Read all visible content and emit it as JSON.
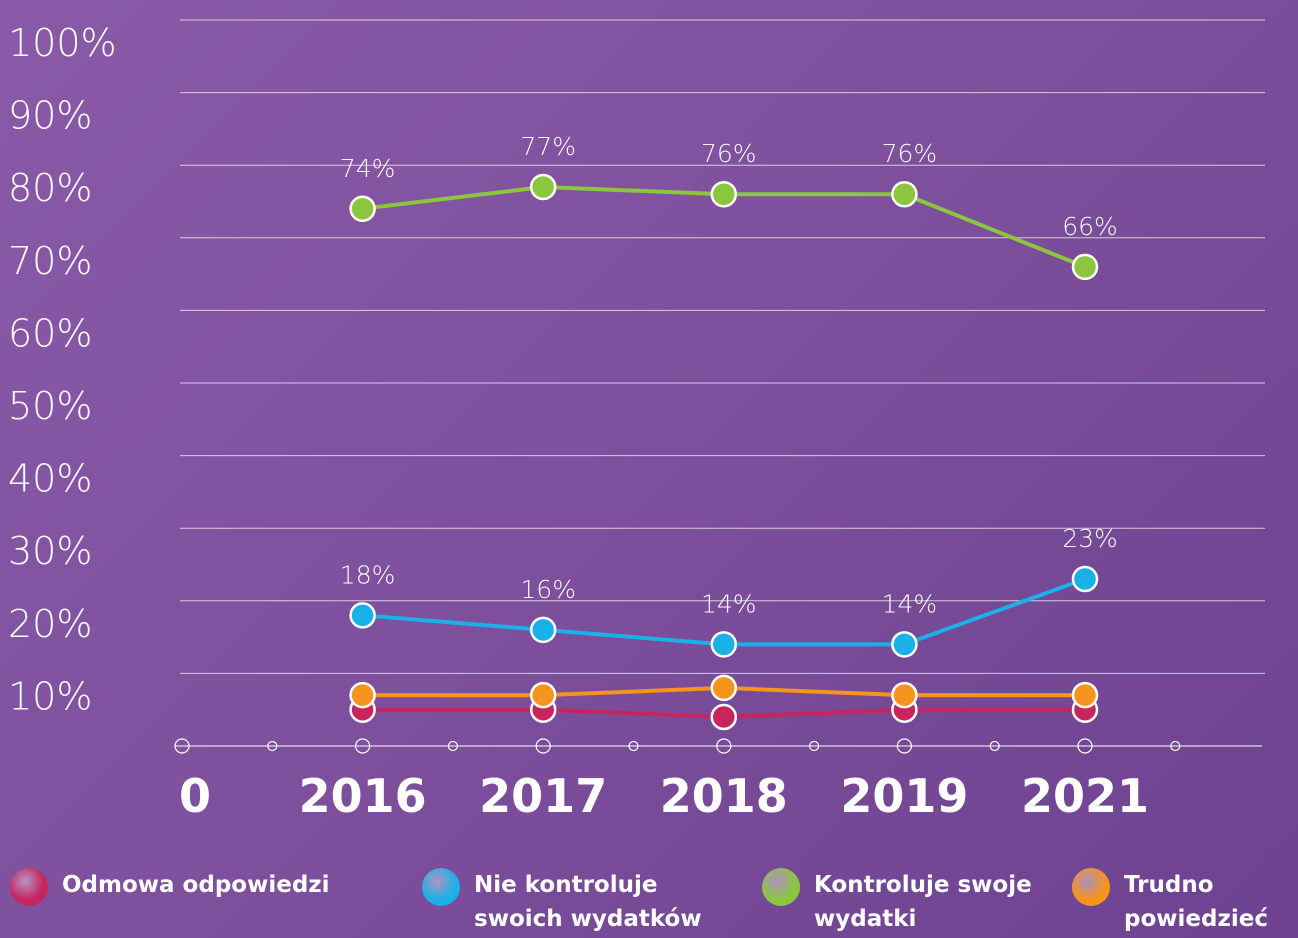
{
  "chart_data": {
    "type": "line",
    "categories": [
      "0",
      "2016",
      "2017",
      "2018",
      "2019",
      "2021"
    ],
    "ylim": [
      0,
      100
    ],
    "yticks": [
      {
        "value": 10,
        "label": "10%"
      },
      {
        "value": 20,
        "label": "20%"
      },
      {
        "value": 30,
        "label": "30%"
      },
      {
        "value": 40,
        "label": "40%"
      },
      {
        "value": 50,
        "label": "50%"
      },
      {
        "value": 60,
        "label": "60%"
      },
      {
        "value": 70,
        "label": "70%"
      },
      {
        "value": 80,
        "label": "80%"
      },
      {
        "value": 90,
        "label": "90%"
      },
      {
        "value": 100,
        "label": "100%"
      }
    ],
    "grid": true,
    "series": [
      {
        "name": "Odmowa odpowiedzi",
        "color": "#c8245e",
        "values": [
          null,
          5,
          5,
          4,
          5,
          5
        ]
      },
      {
        "name": "Nie kontroluje swoich wydatków",
        "color": "#1ab0e8",
        "values": [
          null,
          18,
          16,
          14,
          14,
          23
        ],
        "value_labels": [
          null,
          "18%",
          "16%",
          "14%",
          "14%",
          "23%"
        ]
      },
      {
        "name": "Kontroluje swoje wydatki",
        "color": "#8cc63f",
        "values": [
          null,
          74,
          77,
          76,
          76,
          66
        ],
        "value_labels": [
          null,
          "74%",
          "77%",
          "76%",
          "76%",
          "66%"
        ]
      },
      {
        "name": "Trudno powiedzieć",
        "color": "#f7941d",
        "values": [
          null,
          7,
          7,
          8,
          7,
          7
        ]
      }
    ]
  }
}
